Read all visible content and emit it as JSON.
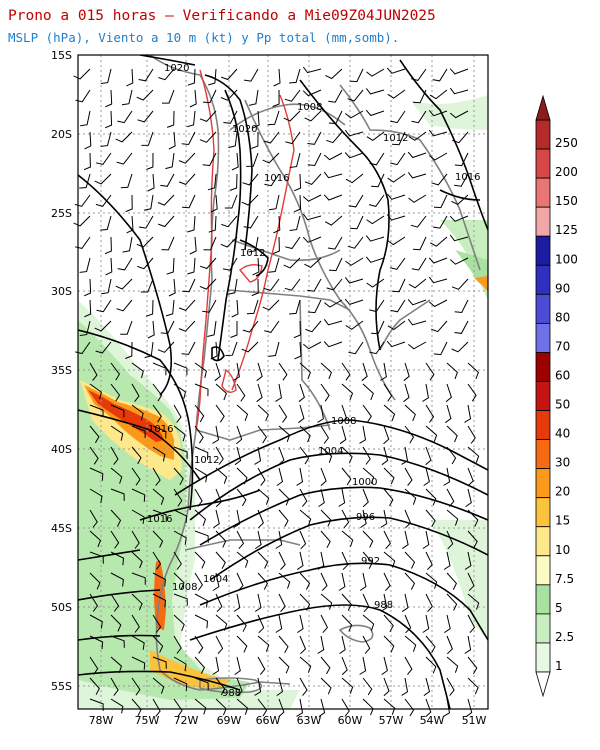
{
  "header": {
    "title": "Prono a 015 horas — Verificando a Mie09Z04JUN2025",
    "subtitle": "MSLP (hPa), Viento a 10 m (kt) y Pp total (mm,somb)."
  },
  "map": {
    "lat_labels": [
      "15S",
      "20S",
      "25S",
      "30S",
      "35S",
      "40S",
      "45S",
      "50S",
      "55S"
    ],
    "lon_labels": [
      "78W",
      "75W",
      "72W",
      "69W",
      "66W",
      "63W",
      "60W",
      "57W",
      "54W",
      "51W"
    ],
    "isobar_labels": [
      "1020",
      "1020",
      "1008",
      "1012",
      "1016",
      "1016",
      "1012",
      "1016",
      "1012",
      "1008",
      "1004",
      "1000",
      "996",
      "992",
      "988",
      "1016",
      "1008",
      "1004",
      "988"
    ]
  },
  "colorbar": {
    "labels": [
      "250",
      "200",
      "150",
      "125",
      "100",
      "90",
      "80",
      "70",
      "60",
      "50",
      "40",
      "30",
      "20",
      "15",
      "10",
      "7.5",
      "5",
      "2.5",
      "1"
    ],
    "colors": [
      "#b52a2a",
      "#d74747",
      "#ea7575",
      "#f2a7a7",
      "#1c1ca3",
      "#3030c0",
      "#4c4cd6",
      "#7070e8",
      "#9c0000",
      "#c41414",
      "#e63a0a",
      "#f66a12",
      "#fb9a1a",
      "#fbc23c",
      "#fde98c",
      "#fdfbc4",
      "#a9e2a0",
      "#c8eec0",
      "#e9f8e5"
    ]
  }
}
